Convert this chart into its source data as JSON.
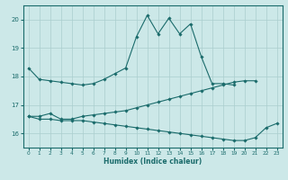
{
  "xlabel": "Humidex (Indice chaleur)",
  "ylabel": "",
  "xlim": [
    -0.5,
    23.5
  ],
  "ylim": [
    15.5,
    20.5
  ],
  "yticks": [
    16,
    17,
    18,
    19,
    20
  ],
  "xticks": [
    0,
    1,
    2,
    3,
    4,
    5,
    6,
    7,
    8,
    9,
    10,
    11,
    12,
    13,
    14,
    15,
    16,
    17,
    18,
    19,
    20,
    21,
    22,
    23
  ],
  "bg_color": "#cce8e8",
  "grid_color": "#aacece",
  "line_color": "#1a6b6b",
  "curves": [
    {
      "x": [
        0,
        1,
        2,
        3,
        4,
        5,
        6,
        7,
        8,
        9,
        10,
        11,
        12,
        13,
        14,
        15,
        16,
        17,
        18,
        19,
        20,
        21,
        22,
        23
      ],
      "y": [
        18.3,
        17.9,
        17.85,
        17.8,
        17.75,
        17.7,
        17.75,
        17.9,
        18.1,
        18.3,
        19.4,
        20.15,
        19.5,
        20.05,
        19.5,
        19.85,
        18.7,
        17.75,
        17.75,
        17.7,
        null,
        null,
        null,
        null
      ]
    },
    {
      "x": [
        0,
        1,
        2,
        3,
        4,
        5,
        6,
        7,
        8,
        9,
        10,
        11,
        12,
        13,
        14,
        15,
        16,
        17,
        18,
        19,
        20,
        21,
        22,
        23
      ],
      "y": [
        16.6,
        16.6,
        16.7,
        16.5,
        16.5,
        16.6,
        16.65,
        16.7,
        16.75,
        16.8,
        16.9,
        17.0,
        17.1,
        17.2,
        17.3,
        17.4,
        17.5,
        17.6,
        17.7,
        17.8,
        17.85,
        17.85,
        null,
        null
      ]
    },
    {
      "x": [
        0,
        1,
        2,
        3,
        4,
        5,
        6,
        7,
        8,
        9,
        10,
        11,
        12,
        13,
        14,
        15,
        16,
        17,
        18,
        19,
        20,
        21,
        22,
        23
      ],
      "y": [
        16.6,
        16.5,
        16.5,
        16.45,
        16.45,
        16.45,
        16.4,
        16.35,
        16.3,
        16.25,
        16.2,
        16.15,
        16.1,
        16.05,
        16.0,
        15.95,
        15.9,
        15.85,
        15.8,
        15.75,
        15.75,
        15.85,
        16.2,
        16.35
      ]
    }
  ]
}
